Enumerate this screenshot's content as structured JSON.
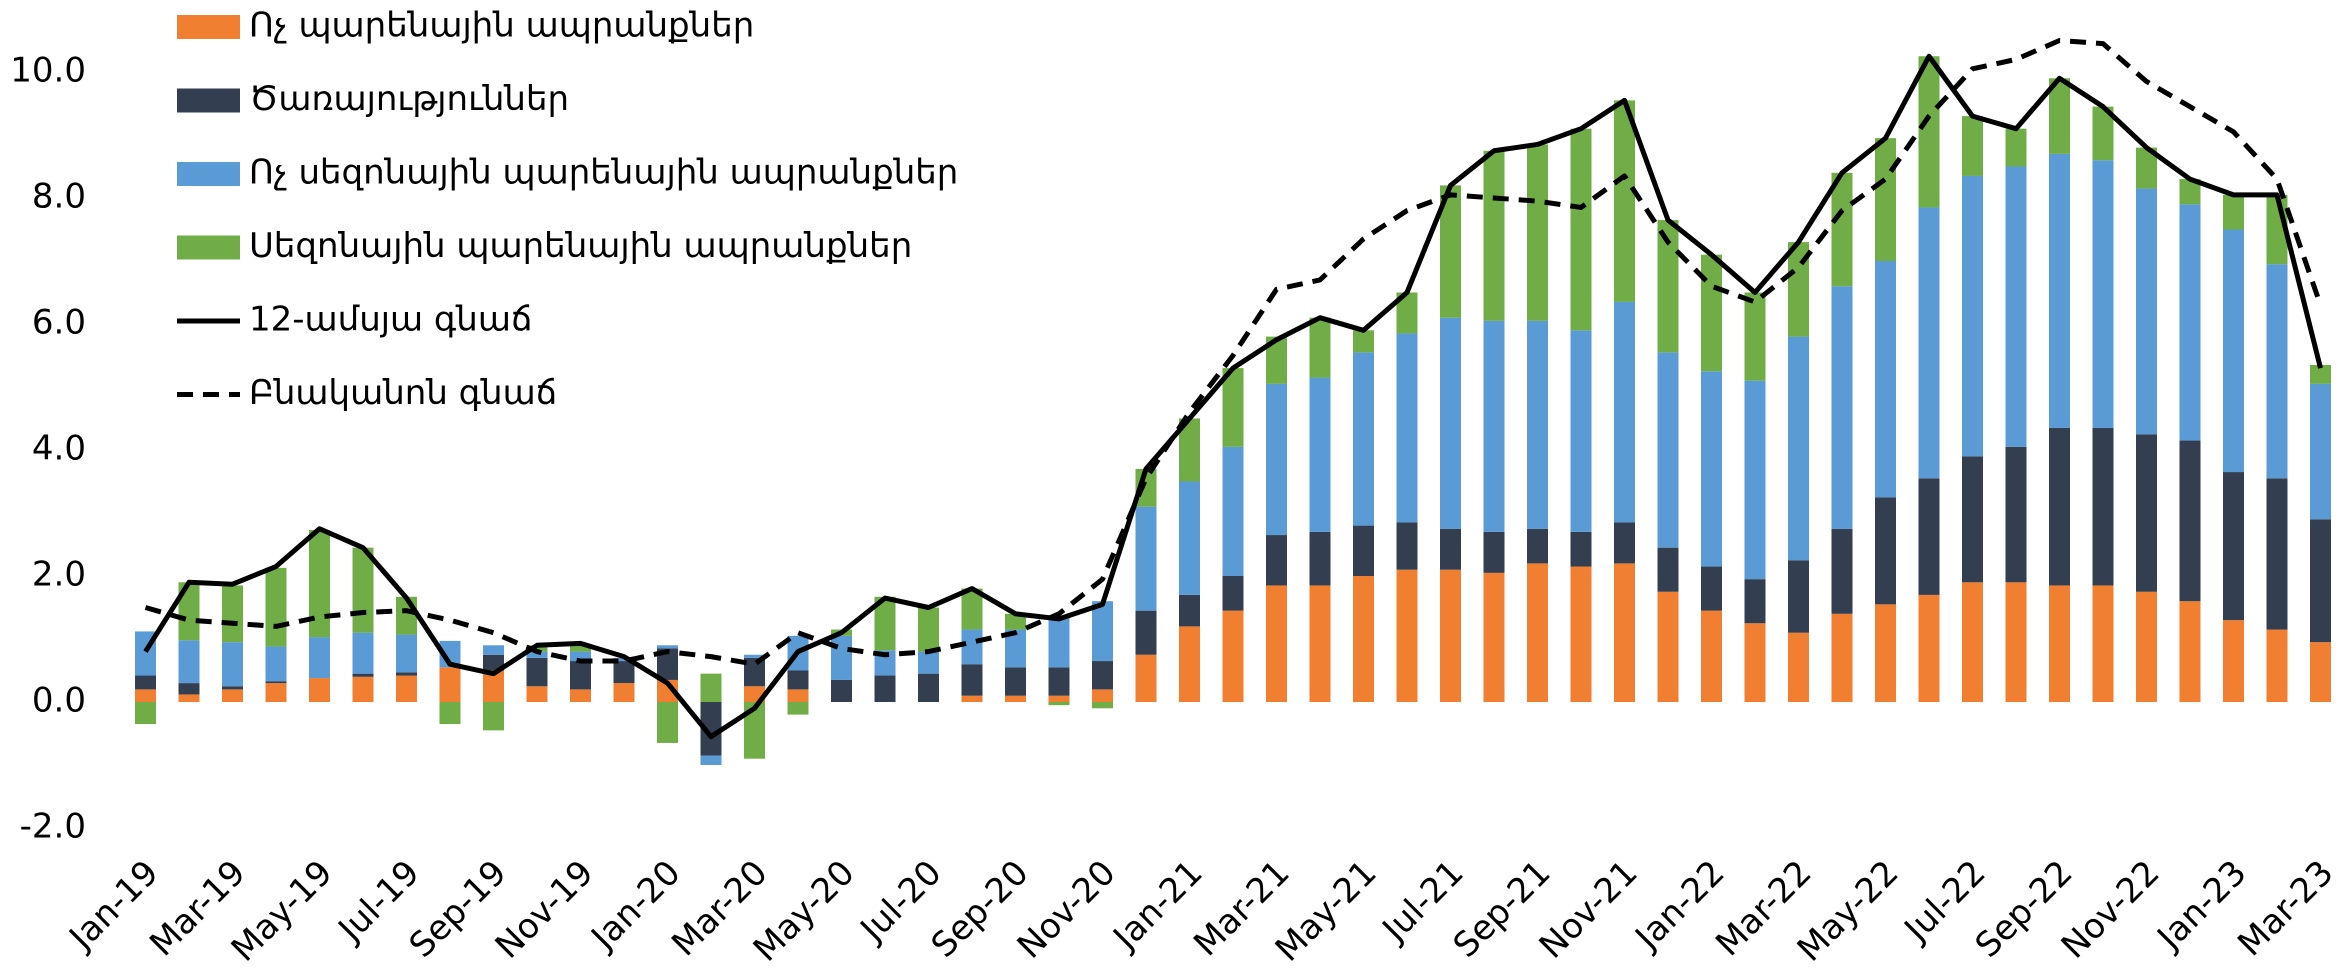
{
  "chart_data": {
    "type": "stacked_bar_line",
    "categories": [
      "Jan-19",
      null,
      "Mar-19",
      null,
      "May-19",
      null,
      "Jul-19",
      null,
      "Sep-19",
      null,
      "Nov-19",
      null,
      "Jan-20",
      null,
      "Mar-20",
      null,
      "May-20",
      null,
      "Jul-20",
      null,
      "Sep-20",
      null,
      "Nov-20",
      null,
      "Jan-21",
      null,
      "Mar-21",
      null,
      "May-21",
      null,
      "Jul-21",
      null,
      "Sep-21",
      null,
      "Nov-21",
      null,
      "Jan-22",
      null,
      "Mar-22",
      null,
      "May-22",
      null,
      "Jul-22",
      null,
      "Sep-22",
      null,
      "Nov-22",
      null,
      "Jan-23",
      null,
      "Mar-23"
    ],
    "series": [
      {
        "name": "Ոչ պարենային ապրանքներ",
        "type": "bar",
        "color": "#f07f32",
        "values": [
          0.2,
          0.12,
          0.2,
          0.3,
          0.38,
          0.4,
          0.42,
          0.55,
          0.5,
          0.25,
          0.2,
          0.3,
          0.35,
          0,
          0.25,
          0.2,
          0,
          0,
          0,
          0.1,
          0.1,
          0.1,
          0.2,
          0.75,
          1.2,
          1.45,
          1.85,
          1.85,
          2.0,
          2.1,
          2.1,
          2.05,
          2.2,
          2.15,
          2.2,
          1.75,
          1.45,
          1.25,
          1.1,
          1.4,
          1.55,
          1.7,
          1.9,
          1.9,
          1.85,
          1.85,
          1.75,
          1.6,
          1.3,
          1.15,
          0.95
        ]
      },
      {
        "name": "Ծառայություններ",
        "type": "bar",
        "color": "#333f50",
        "values": [
          0.22,
          0.18,
          0.05,
          0.03,
          0,
          0.05,
          0.05,
          0,
          0.25,
          0.45,
          0.45,
          0.35,
          0.5,
          -0.85,
          0.45,
          0.3,
          0.35,
          0.42,
          0.45,
          0.5,
          0.45,
          0.45,
          0.45,
          0.7,
          0.5,
          0.55,
          0.8,
          0.85,
          0.8,
          0.75,
          0.65,
          0.65,
          0.55,
          0.55,
          0.65,
          0.7,
          0.7,
          0.7,
          1.15,
          1.35,
          1.7,
          1.85,
          2.0,
          2.15,
          2.5,
          2.5,
          2.5,
          2.55,
          2.35,
          2.4,
          1.95
        ]
      },
      {
        "name": "Ոչ սեզոնային պարենային ապրանքներ",
        "type": "bar",
        "color": "#5b9bd5",
        "values": [
          0.7,
          0.68,
          0.7,
          0.55,
          0.65,
          0.65,
          0.6,
          0.42,
          0.15,
          0.1,
          0.15,
          0.05,
          0.05,
          -0.15,
          0.05,
          0.55,
          0.7,
          0.4,
          0.35,
          0.55,
          0.6,
          0.8,
          0.95,
          1.65,
          1.8,
          2.05,
          2.4,
          2.45,
          2.75,
          3.0,
          3.35,
          3.35,
          3.3,
          3.2,
          3.5,
          3.1,
          3.1,
          3.15,
          3.55,
          3.85,
          3.75,
          4.3,
          4.45,
          4.45,
          4.35,
          4.25,
          3.9,
          3.75,
          3.85,
          3.4,
          2.15
        ]
      },
      {
        "name": "Սեզոնային պարենային ապրանքներ",
        "type": "bar",
        "color": "#70ad47",
        "values": [
          -0.35,
          0.92,
          0.9,
          1.25,
          1.7,
          1.35,
          0.6,
          -0.35,
          -0.45,
          0.1,
          0.1,
          0,
          -0.65,
          0.45,
          -0.9,
          -0.2,
          0.1,
          0.85,
          0.7,
          0.65,
          0.25,
          -0.05,
          -0.1,
          0.6,
          1.0,
          1.25,
          0.75,
          0.95,
          0.35,
          0.65,
          2.1,
          2.7,
          2.8,
          3.2,
          3.2,
          2.1,
          1.85,
          1.4,
          1.5,
          1.8,
          1.95,
          2.4,
          0.95,
          0.6,
          1.2,
          0.85,
          0.65,
          0.4,
          0.55,
          1.1,
          0.3
        ]
      },
      {
        "name": "12-ամսյա գնաճ",
        "type": "line",
        "color": "#000000",
        "dash": false,
        "values": [
          0.8,
          1.9,
          1.87,
          2.15,
          2.75,
          2.45,
          1.65,
          0.6,
          0.45,
          0.9,
          0.93,
          0.72,
          0.3,
          -0.55,
          -0.1,
          0.8,
          1.1,
          1.65,
          1.5,
          1.8,
          1.4,
          1.32,
          1.55,
          3.7,
          4.5,
          5.3,
          5.75,
          6.1,
          5.9,
          6.5,
          8.2,
          8.75,
          8.85,
          9.1,
          9.55,
          7.65,
          7.1,
          6.5,
          7.3,
          8.4,
          8.95,
          10.25,
          9.3,
          9.1,
          9.9,
          9.45,
          8.8,
          8.3,
          8.05,
          8.05,
          5.3
        ]
      },
      {
        "name": "Բնականոն գնաճ",
        "type": "line",
        "color": "#000000",
        "dash": true,
        "values": [
          1.5,
          1.3,
          1.25,
          1.2,
          1.35,
          1.42,
          1.45,
          1.3,
          1.1,
          0.8,
          0.65,
          0.65,
          0.8,
          0.72,
          0.6,
          1.1,
          0.85,
          0.75,
          0.8,
          0.95,
          1.1,
          1.4,
          1.95,
          3.55,
          4.6,
          5.5,
          6.55,
          6.7,
          7.35,
          7.8,
          8.05,
          8.0,
          7.95,
          7.85,
          8.35,
          7.3,
          6.6,
          6.35,
          6.9,
          7.8,
          8.3,
          9.3,
          10.05,
          10.2,
          10.5,
          10.45,
          9.85,
          9.45,
          9.05,
          8.3,
          6.3
        ]
      }
    ],
    "ylim": [
      -2,
      10.5
    ],
    "yticks": [
      {
        "value": -2,
        "label": "-2.0"
      },
      {
        "value": 0,
        "label": "0.0"
      },
      {
        "value": 2,
        "label": "2.0"
      },
      {
        "value": 4,
        "label": "4.0"
      },
      {
        "value": 6,
        "label": "6.0"
      },
      {
        "value": 8,
        "label": "8.0"
      },
      {
        "value": 10,
        "label": "10.0"
      }
    ],
    "grid": false,
    "legend": "upper left"
  }
}
